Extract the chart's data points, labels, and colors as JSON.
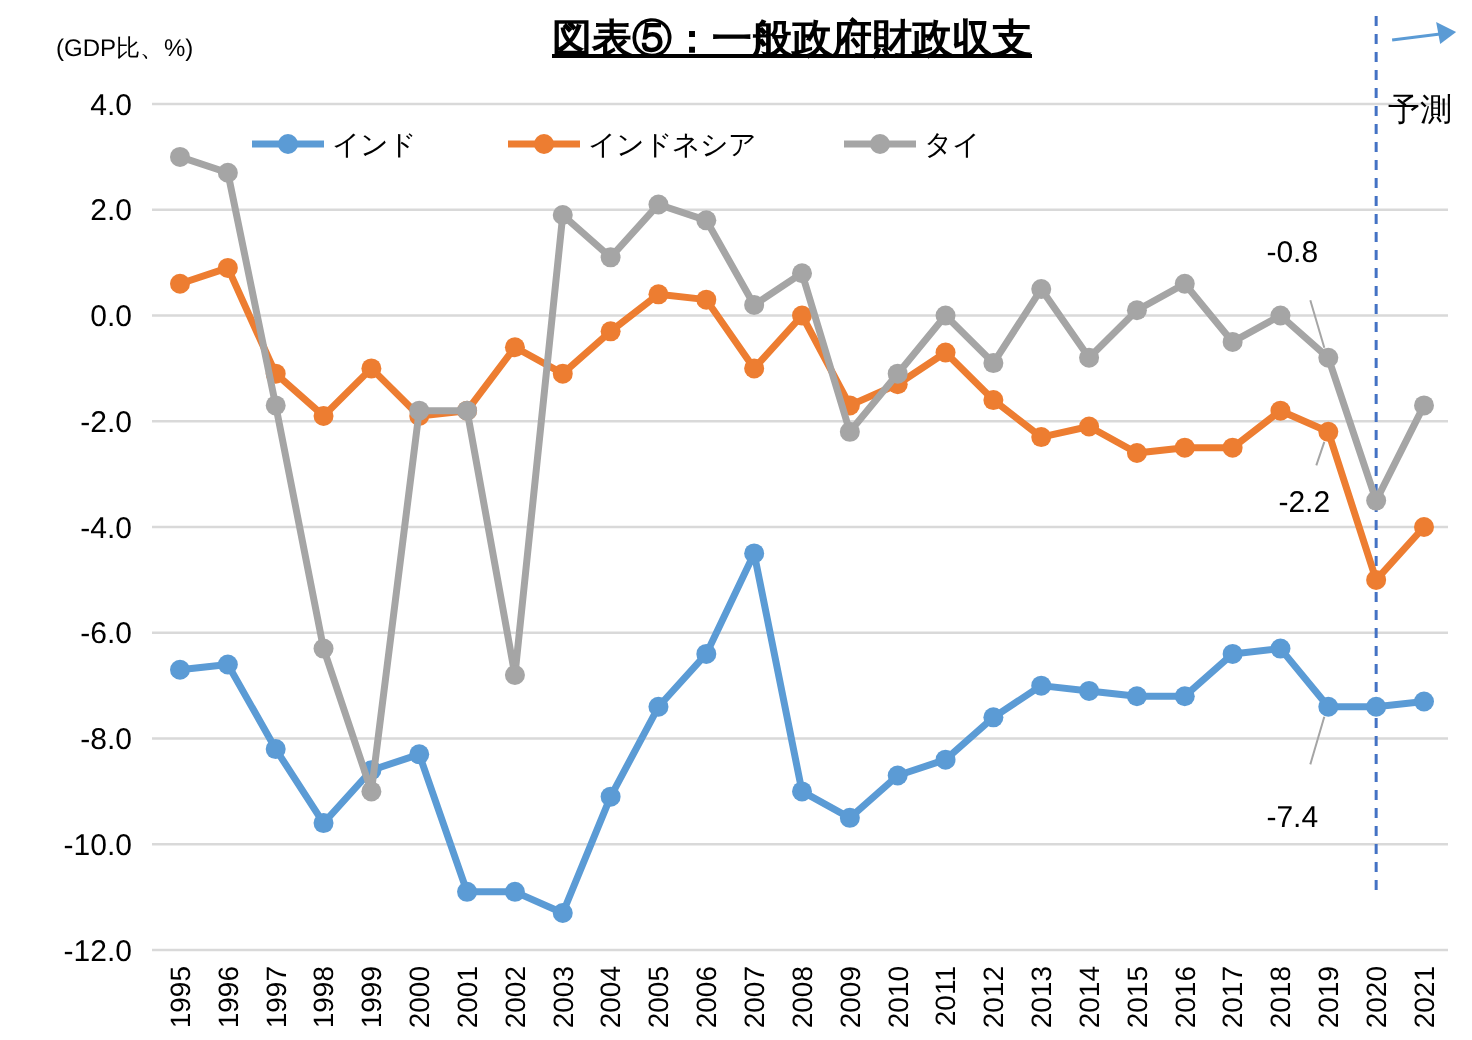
{
  "chart_data": {
    "type": "line",
    "title": "図表⑤：一般政府財政収支",
    "ylabel": "(GDP比、%)",
    "categories": [
      "1995",
      "1996",
      "1997",
      "1998",
      "1999",
      "2000",
      "2001",
      "2002",
      "2003",
      "2004",
      "2005",
      "2006",
      "2007",
      "2008",
      "2009",
      "2010",
      "2011",
      "2012",
      "2013",
      "2014",
      "2015",
      "2016",
      "2017",
      "2018",
      "2019",
      "2020",
      "2021"
    ],
    "series": [
      {
        "name": "インド",
        "color": "#5b9bd5",
        "values": [
          -6.7,
          -6.6,
          -8.2,
          -9.6,
          -8.6,
          -8.3,
          -10.9,
          -10.9,
          -11.3,
          -9.1,
          -7.4,
          -6.4,
          -4.5,
          -9.0,
          -9.5,
          -8.7,
          -8.4,
          -7.6,
          -7.0,
          -7.1,
          -7.2,
          -7.2,
          -6.4,
          -6.3,
          -7.4,
          -7.4,
          -7.3
        ],
        "value_labels": [
          null,
          null,
          null,
          null,
          null,
          null,
          null,
          null,
          null,
          null,
          null,
          null,
          null,
          null,
          null,
          null,
          null,
          null,
          null,
          null,
          null,
          null,
          null,
          null,
          "-7.4",
          null,
          null
        ]
      },
      {
        "name": "インドネシア",
        "color": "#ed7d31",
        "values": [
          0.6,
          0.9,
          -1.1,
          -1.9,
          -1.0,
          -1.9,
          -1.8,
          -0.6,
          -1.1,
          -0.3,
          0.4,
          0.3,
          -1.0,
          0.0,
          -1.7,
          -1.3,
          -0.7,
          -1.6,
          -2.3,
          -2.1,
          -2.6,
          -2.5,
          -2.5,
          -1.8,
          -2.2,
          -5.0,
          -4.0
        ],
        "value_labels": [
          null,
          null,
          null,
          null,
          null,
          null,
          null,
          null,
          null,
          null,
          null,
          null,
          null,
          null,
          null,
          null,
          null,
          null,
          null,
          null,
          null,
          null,
          null,
          null,
          "-2.2",
          null,
          null
        ]
      },
      {
        "name": "タイ",
        "color": "#a5a5a5",
        "values": [
          3.0,
          2.7,
          -1.7,
          -6.3,
          -9.0,
          -1.8,
          -1.8,
          -6.8,
          1.9,
          1.1,
          2.1,
          1.8,
          0.2,
          0.8,
          -2.2,
          -1.1,
          0.0,
          -0.9,
          0.5,
          -0.8,
          0.1,
          0.6,
          -0.5,
          0.0,
          -0.8,
          -3.5,
          -1.7
        ],
        "value_labels": [
          null,
          null,
          null,
          null,
          null,
          null,
          null,
          null,
          null,
          null,
          null,
          null,
          null,
          null,
          null,
          null,
          null,
          null,
          null,
          null,
          null,
          null,
          null,
          null,
          "-0.8",
          null,
          null
        ]
      }
    ],
    "ylim": [
      -12,
      4
    ],
    "yticks": [
      {
        "value": -12,
        "label": "-12.0"
      },
      {
        "value": -10,
        "label": "-10.0"
      },
      {
        "value": -8,
        "label": "-8.0"
      },
      {
        "value": -6,
        "label": "-6.0"
      },
      {
        "value": -4,
        "label": "-4.0"
      },
      {
        "value": -2,
        "label": "-2.0"
      },
      {
        "value": 0,
        "label": "0.0"
      },
      {
        "value": 2,
        "label": "2.0"
      },
      {
        "value": 4,
        "label": "4.0"
      }
    ],
    "grid": "y",
    "legend": "top",
    "marker": "circle",
    "line_style": "solid",
    "ref_lines": [
      {
        "axis": "x",
        "value": "2020",
        "label": "予測",
        "color": "#4472c4",
        "line_style": "dashed"
      }
    ]
  }
}
